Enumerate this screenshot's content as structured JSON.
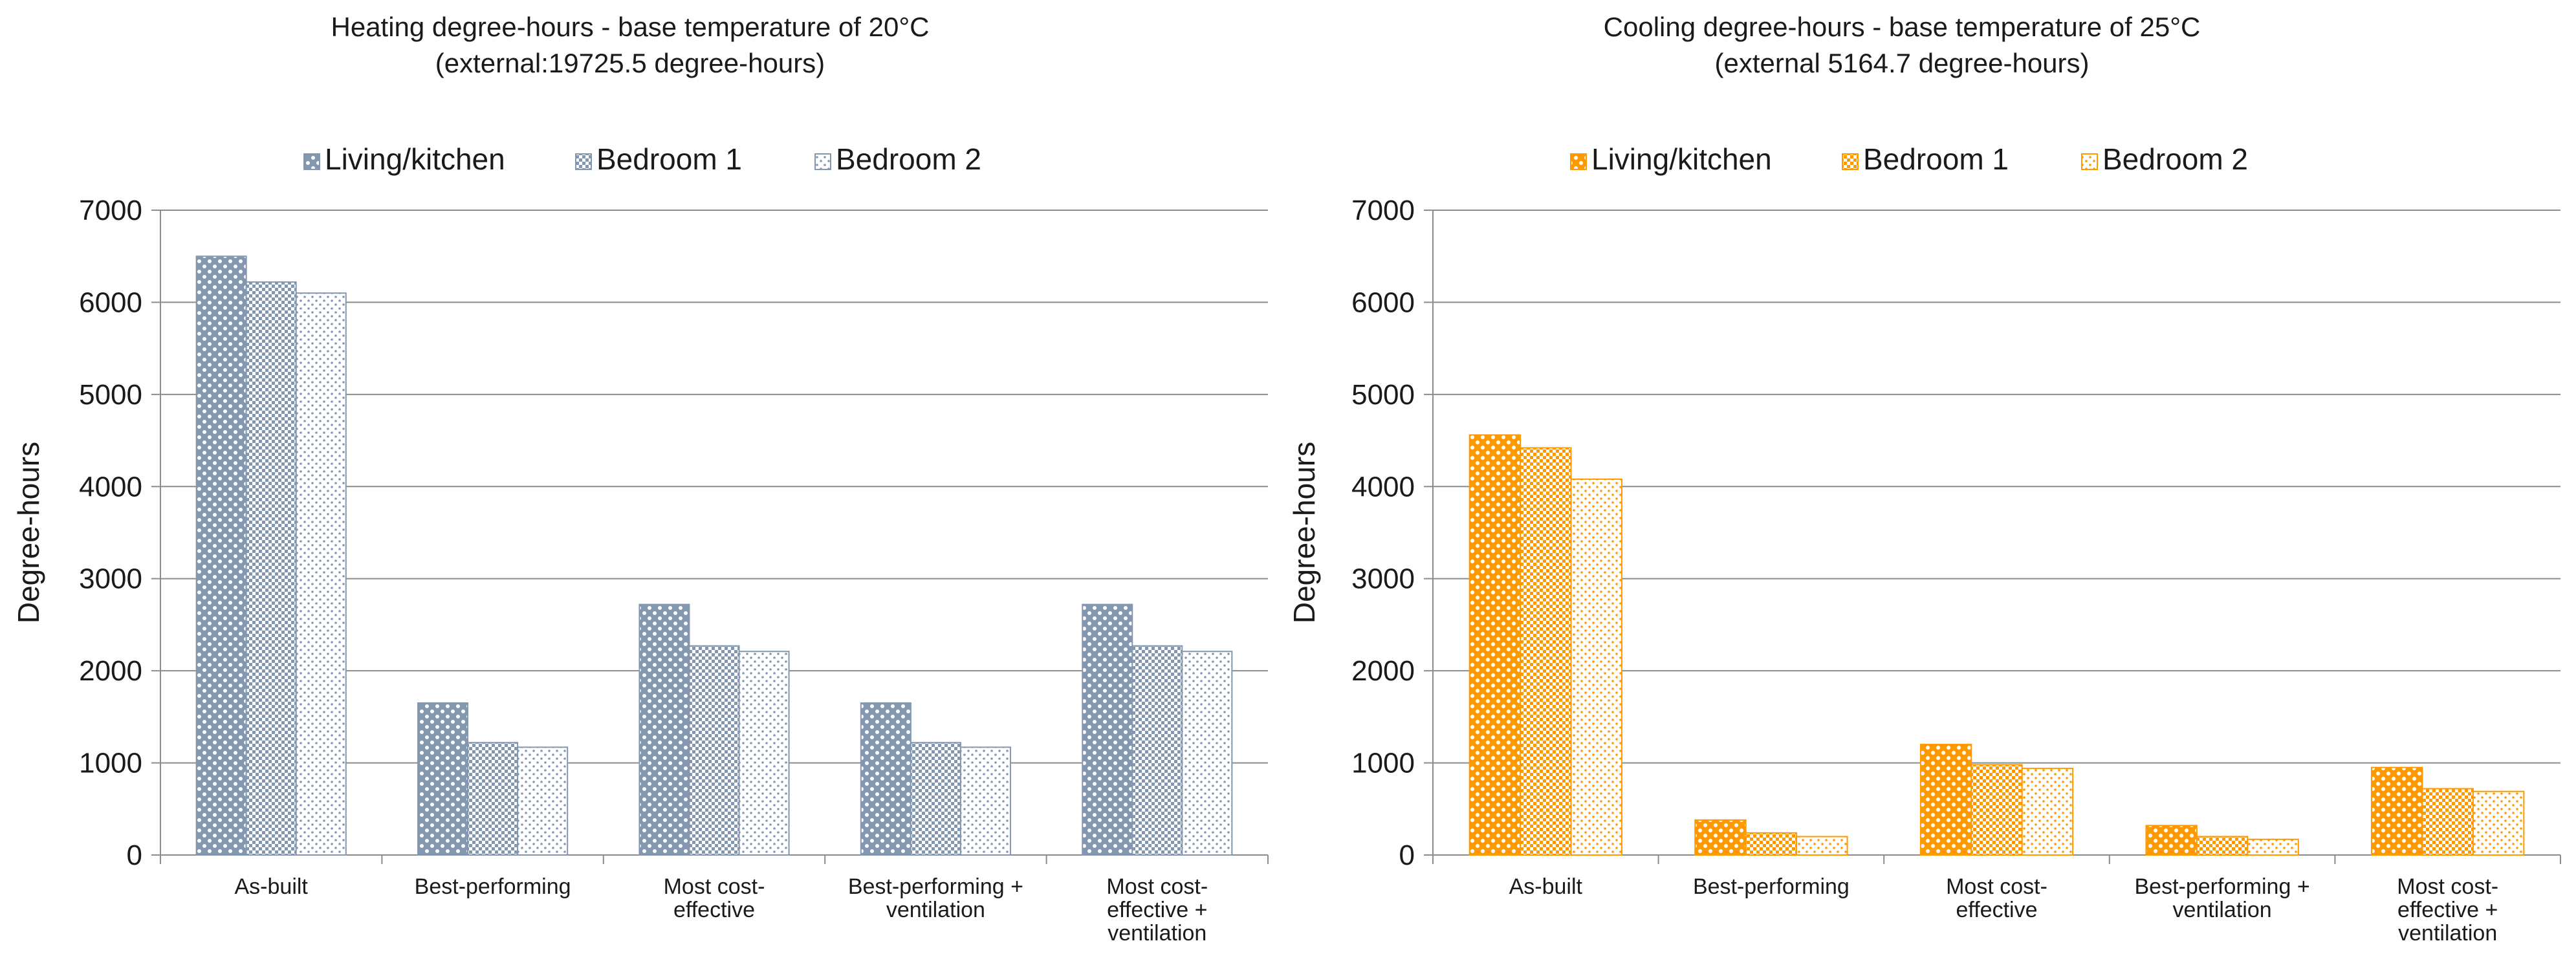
{
  "chart_data": [
    {
      "type": "bar",
      "title": [
        "Heating degree-hours - base temperature of 20°C",
        "(external:19725.5 degree-hours)"
      ],
      "xlabel": "",
      "ylabel": "Degree-hours",
      "ylim": [
        0,
        7000
      ],
      "yticks": [
        0,
        1000,
        2000,
        3000,
        4000,
        5000,
        6000,
        7000
      ],
      "grid": true,
      "legend_position": "top-center",
      "categories": [
        [
          "As-built"
        ],
        [
          "Best-performing"
        ],
        [
          "Most cost-",
          "effective"
        ],
        [
          "Best-performing +",
          "ventilation"
        ],
        [
          "Most cost-",
          "effective +",
          "ventilation"
        ]
      ],
      "series": [
        {
          "name": "Living/kitchen",
          "values": [
            6500,
            1650,
            2720,
            1650,
            2720
          ],
          "color": "#8497b0",
          "pattern": "dots-large"
        },
        {
          "name": "Bedroom 1",
          "values": [
            6220,
            1220,
            2270,
            1220,
            2270
          ],
          "color": "#8497b0",
          "pattern": "checker"
        },
        {
          "name": "Bedroom 2",
          "values": [
            6100,
            1170,
            2210,
            1170,
            2210
          ],
          "color": "#8497b0",
          "pattern": "dots-small"
        }
      ]
    },
    {
      "type": "bar",
      "title": [
        "Cooling degree-hours - base temperature of 25°C",
        "(external 5164.7 degree-hours)"
      ],
      "xlabel": "",
      "ylabel": "Degree-hours",
      "ylim": [
        0,
        7000
      ],
      "yticks": [
        0,
        1000,
        2000,
        3000,
        4000,
        5000,
        6000,
        7000
      ],
      "grid": true,
      "legend_position": "top-center",
      "categories": [
        [
          "As-built"
        ],
        [
          "Best-performing"
        ],
        [
          "Most cost-",
          "effective"
        ],
        [
          "Best-performing +",
          "ventilation"
        ],
        [
          "Most cost-",
          "effective +",
          "ventilation"
        ]
      ],
      "series": [
        {
          "name": "Living/kitchen",
          "values": [
            4560,
            380,
            1200,
            320,
            950
          ],
          "color": "#ff9900",
          "pattern": "dots-large"
        },
        {
          "name": "Bedroom 1",
          "values": [
            4420,
            240,
            980,
            200,
            720
          ],
          "color": "#ff9900",
          "pattern": "checker"
        },
        {
          "name": "Bedroom 2",
          "values": [
            4080,
            200,
            940,
            170,
            690
          ],
          "color": "#ff9900",
          "pattern": "dots-small"
        }
      ]
    }
  ]
}
